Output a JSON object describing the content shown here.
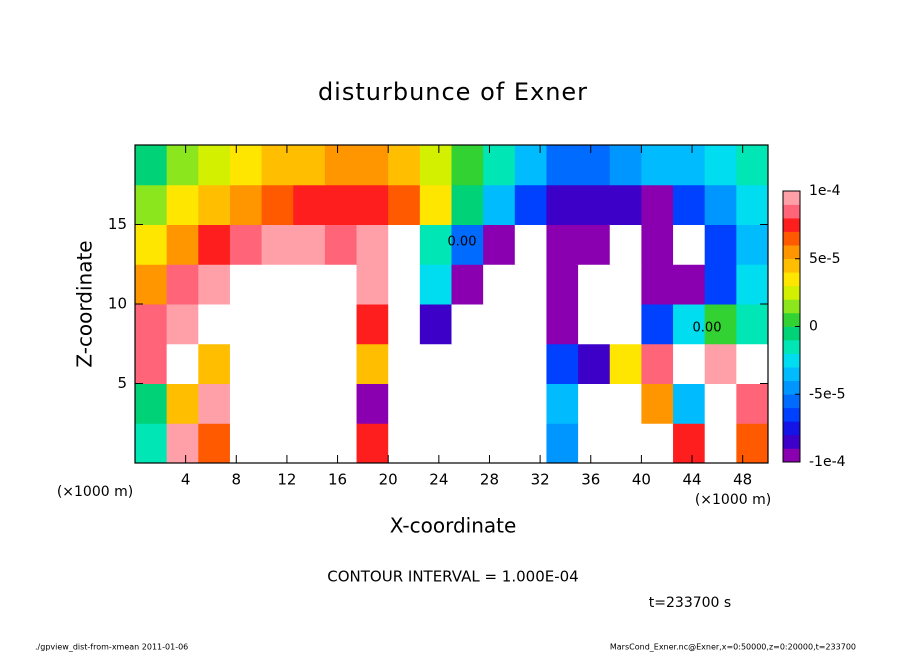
{
  "chart_data": {
    "type": "contour",
    "title": "disturbunce of Exner",
    "xlabel": "X-coordinate",
    "ylabel": "Z-coordinate",
    "x_unit_label": "(×1000 m)",
    "xlim": [
      0,
      50
    ],
    "xticks": [
      4,
      8,
      12,
      16,
      20,
      24,
      28,
      32,
      36,
      40,
      44,
      48
    ],
    "ylim": [
      0,
      20
    ],
    "yticks": [
      5,
      10,
      15
    ],
    "x": [
      1.25,
      3.75,
      6.25,
      8.75,
      11.25,
      13.75,
      16.25,
      18.75,
      21.25,
      23.75,
      26.25,
      28.75,
      31.25,
      33.75,
      36.25,
      38.75,
      41.25,
      43.75,
      46.25,
      48.75
    ],
    "z": [
      1.25,
      3.75,
      6.25,
      8.75,
      11.25,
      13.75,
      16.25,
      18.75
    ],
    "values": [
      [
        -2e-05,
        9e-05,
        6e-05,
        0.00015,
        -0.00015,
        -0.00015,
        -0.00015,
        7e-05,
        0.00015,
        -0.00015,
        0.00015,
        0.00015,
        0.00015,
        -5e-05,
        -0.00015,
        -0.00015,
        0.00015,
        7e-05,
        0.00015,
        6e-05
      ],
      [
        -1e-05,
        4e-05,
        9e-05,
        0.00015,
        0.00015,
        -0.00015,
        -0.00015,
        -9e-05,
        0.00015,
        -0.00015,
        -0.00015,
        0.00015,
        0.00015,
        -4e-05,
        -0.00015,
        -0.00015,
        5e-05,
        -4e-05,
        0.00015,
        8e-05
      ],
      [
        8e-05,
        0.00015,
        4e-05,
        0.00015,
        0.00015,
        0.00015,
        0.00015,
        4e-05,
        0.00015,
        -0.00015,
        -0.00015,
        -0.00015,
        -0.00015,
        -7e-05,
        -8e-05,
        3e-05,
        8e-05,
        0.00015,
        9e-05,
        0.00015
      ],
      [
        8e-05,
        9e-05,
        0.00015,
        0.00015,
        0.00015,
        0.00015,
        0.00015,
        7e-05,
        0.00015,
        -8e-05,
        -0.00015,
        -0.00015,
        -0.00015,
        -9e-05,
        -0.00015,
        -0.00015,
        -7e-05,
        -3e-05,
        0,
        -2e-05
      ],
      [
        5e-05,
        8e-05,
        9e-05,
        0.00015,
        0.00015,
        0.00015,
        0.00015,
        9e-05,
        0.00015,
        -3e-05,
        -9e-05,
        -0.00015,
        -0.00015,
        -0.0001,
        -0.00015,
        -0.00015,
        -0.0001,
        -9e-05,
        -7e-05,
        -3e-05
      ],
      [
        3e-05,
        5e-05,
        7e-05,
        8e-05,
        9e-05,
        9e-05,
        8e-05,
        9e-05,
        0.00015,
        -2e-05,
        -6e-05,
        -9e-05,
        -0.00015,
        -9e-05,
        -9e-05,
        -0.00015,
        -9e-05,
        -0.00015,
        -7e-05,
        -4e-05
      ],
      [
        1e-05,
        3e-05,
        4e-05,
        5e-05,
        6e-05,
        7e-05,
        7e-05,
        7e-05,
        6e-05,
        3e-05,
        -1e-05,
        -4e-05,
        -7e-05,
        -8e-05,
        -8e-05,
        -8e-05,
        -9e-05,
        -7e-05,
        -5e-05,
        -3e-05
      ],
      [
        -1e-05,
        1e-05,
        2e-05,
        3e-05,
        4e-05,
        4e-05,
        5e-05,
        5e-05,
        4e-05,
        2e-05,
        0,
        -2e-05,
        -4e-05,
        -6e-05,
        -6e-05,
        -5e-05,
        -4e-05,
        -4e-05,
        -3e-05,
        -2e-05
      ]
    ],
    "clim": [
      -0.0001,
      0.0001
    ],
    "cticks": [
      {
        "value": 0.0001,
        "label": "1e-4"
      },
      {
        "value": 5e-05,
        "label": "5e-5"
      },
      0,
      {
        "value": -5e-05,
        "label": "-5e-5"
      },
      {
        "value": -0.0001,
        "label": "-1e-4"
      }
    ],
    "levels": [
      "#8a00b0",
      "#3c00c8",
      "#1414e6",
      "#0040ff",
      "#006cff",
      "#0096ff",
      "#00bcff",
      "#00dcf0",
      "#00e6b4",
      "#00d278",
      "#32d232",
      "#8ce61e",
      "#d2f000",
      "#ffe600",
      "#ffbe00",
      "#ff9600",
      "#ff5a00",
      "#ff1e1e",
      "#ff6478",
      "#ffa0a8"
    ],
    "out_of_range_color": "#ffffff",
    "contour_labels": [
      "0.00",
      "0.00"
    ],
    "annotation": "CONTOUR INTERVAL = 1.000E-04",
    "time_label": "t=233700 s",
    "footer_left": "./gpview_dist-from-xmean  2011-01-06",
    "footer_right": "MarsCond_Exner.nc@Exner,x=0:50000,z=0:20000,t=233700"
  }
}
